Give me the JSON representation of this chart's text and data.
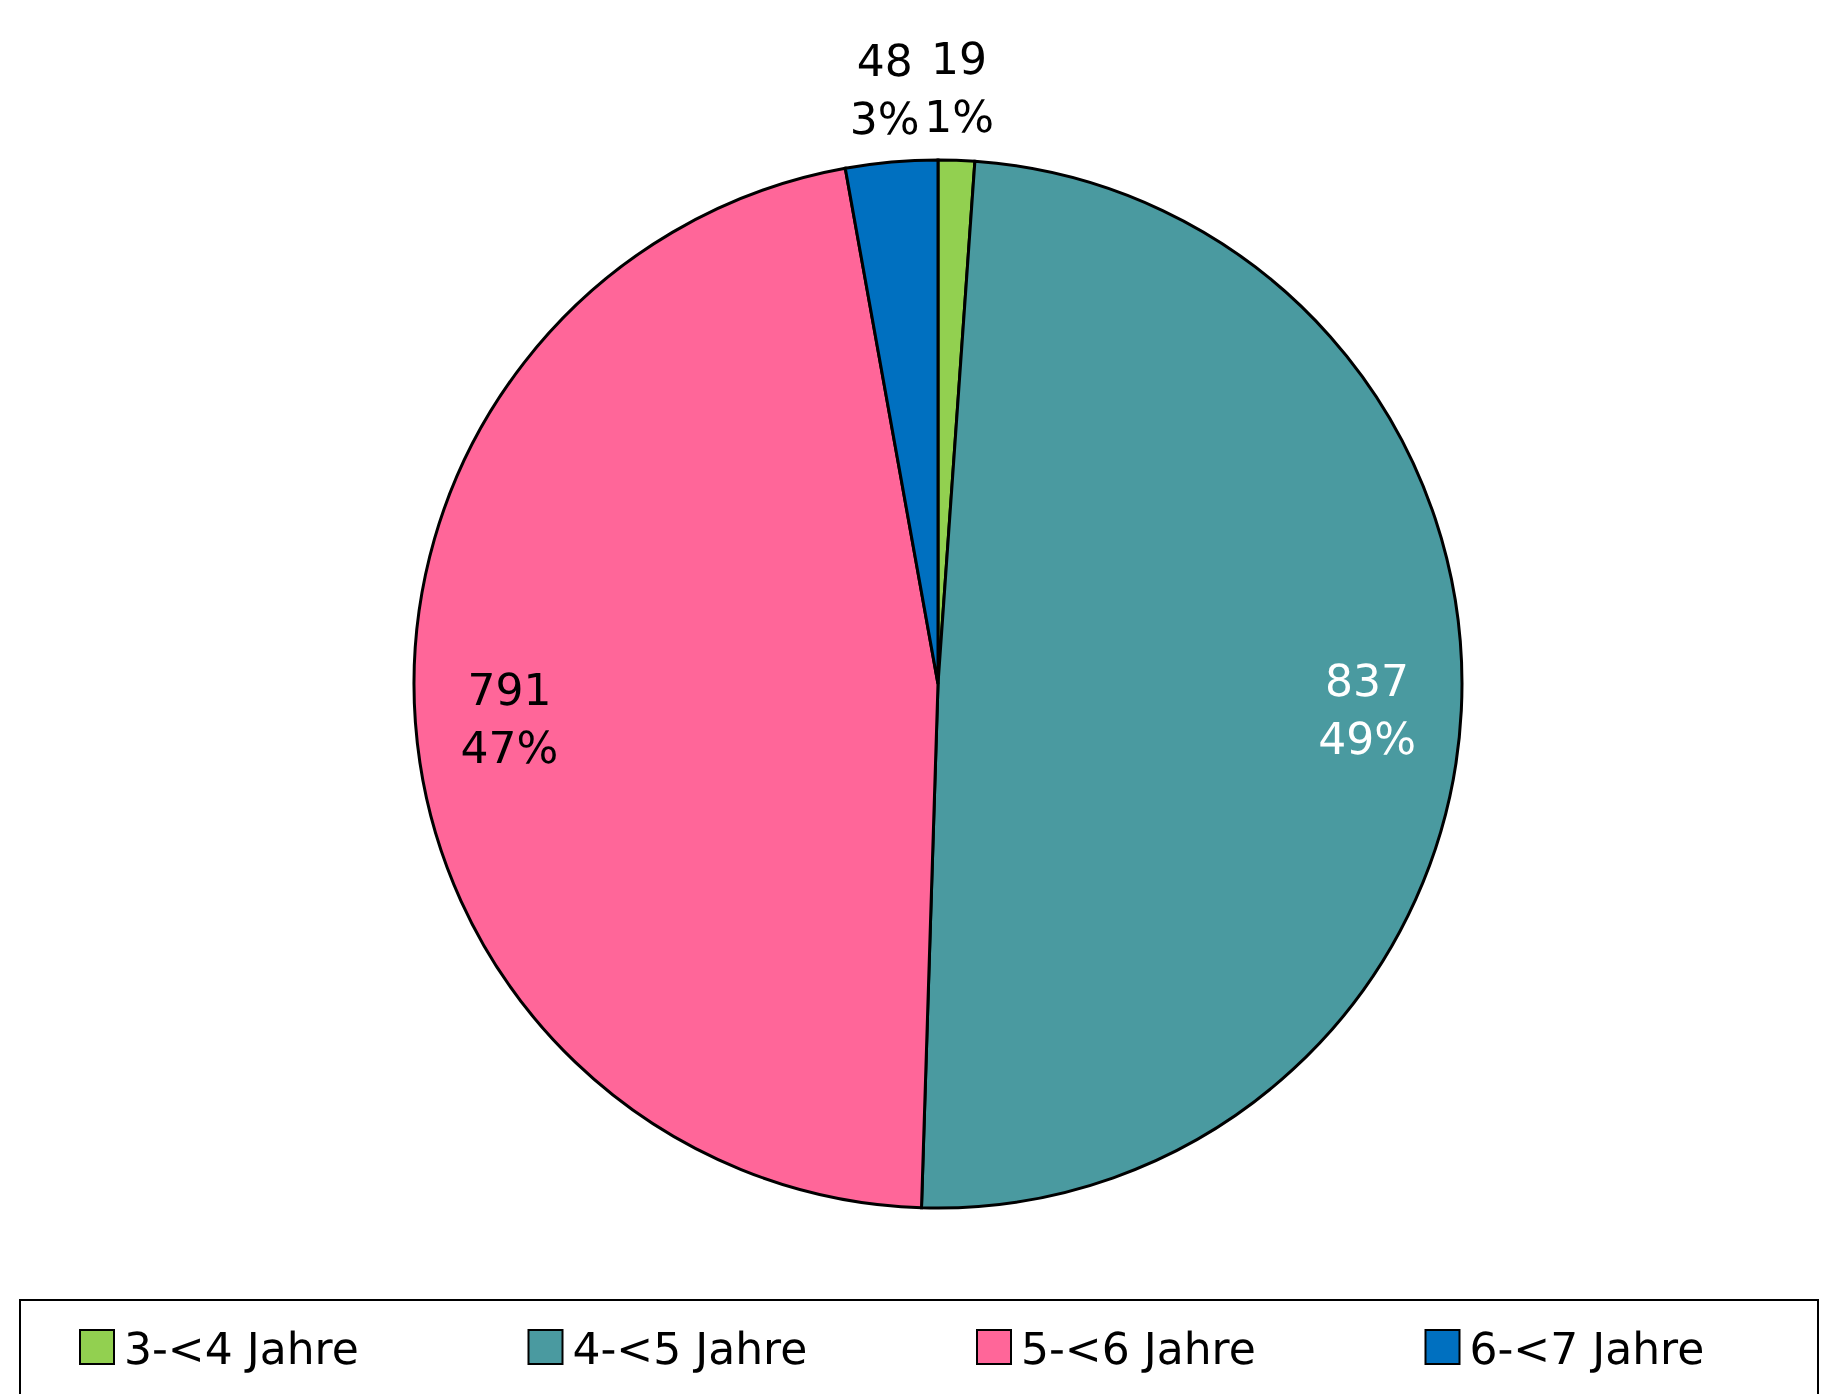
{
  "chart_data": {
    "type": "pie",
    "categories": [
      "3-<4 Jahre",
      "4-<5 Jahre",
      "5-<6 Jahre",
      "6-<7 Jahre"
    ],
    "values": [
      19,
      837,
      791,
      48
    ],
    "colors": [
      "#92d050",
      "#4a9aa0",
      "#ff6699",
      "#0070c0"
    ],
    "value_labels": [
      "19\n1%",
      "837\n49%",
      "791\n47%",
      "48\n3%"
    ],
    "legend": "bottom"
  }
}
